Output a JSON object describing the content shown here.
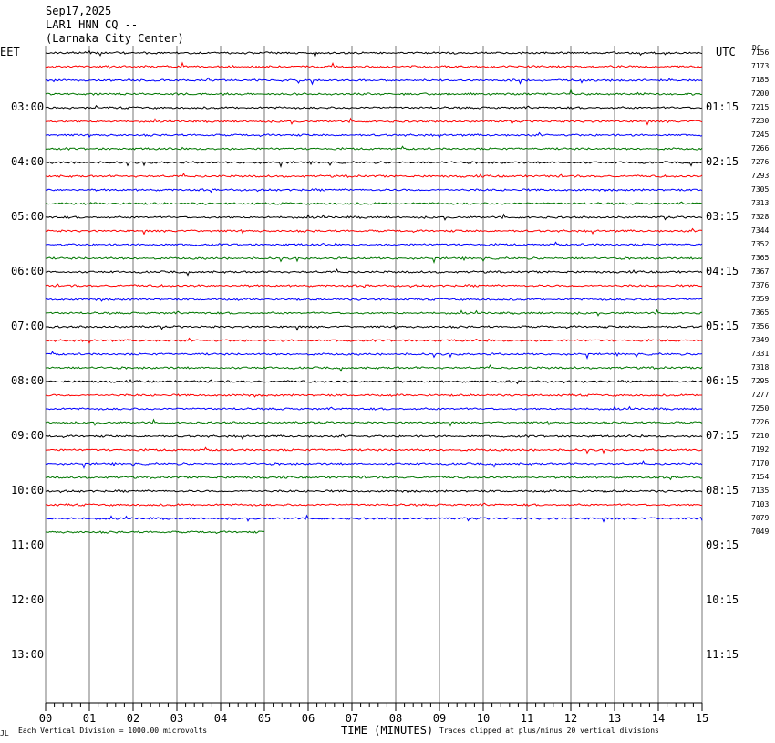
{
  "header": {
    "date": "Sep17,2025",
    "station": "LAR1 HNN CQ --",
    "location": "(Larnaka City Center)"
  },
  "axis": {
    "left_zone": "EET",
    "right_zone": "UTC",
    "dc_label": "DC",
    "xlabel": "TIME (MINUTES)",
    "scale_note": "Each Vertical Division = 1000.00 microvolts",
    "clip_note": "Traces clipped at plus/minus 20 vertical divisions",
    "corner_mark": "JL"
  },
  "chart_data": {
    "type": "line",
    "xlim": [
      0,
      15
    ],
    "x_ticks": [
      "00",
      "01",
      "02",
      "03",
      "04",
      "05",
      "06",
      "07",
      "08",
      "09",
      "10",
      "11",
      "12",
      "13",
      "14",
      "15"
    ],
    "left_time_labels": [
      "03:00",
      "04:00",
      "05:00",
      "06:00",
      "07:00",
      "08:00",
      "09:00",
      "10:00",
      "11:00",
      "12:00",
      "13:00"
    ],
    "right_time_labels": [
      "01:15",
      "02:15",
      "03:15",
      "04:15",
      "05:15",
      "06:15",
      "07:15",
      "08:15",
      "09:15",
      "10:15",
      "11:15"
    ],
    "trace_colors": [
      "#000000",
      "#ff0000",
      "#0000ff",
      "#007700"
    ],
    "dc_values": [
      "7156",
      "7173",
      "7185",
      "7200",
      "7215",
      "7230",
      "7245",
      "7266",
      "7276",
      "7293",
      "7305",
      "7313",
      "7328",
      "7344",
      "7352",
      "7365",
      "7367",
      "7376",
      "7359",
      "7365",
      "7356",
      "7349",
      "7331",
      "7318",
      "7295",
      "7277",
      "7250",
      "7226",
      "7210",
      "7192",
      "7170",
      "7154",
      "7135",
      "7103",
      "7079",
      "7049"
    ],
    "last_trace_end_minute": 5.0,
    "grid": true
  }
}
